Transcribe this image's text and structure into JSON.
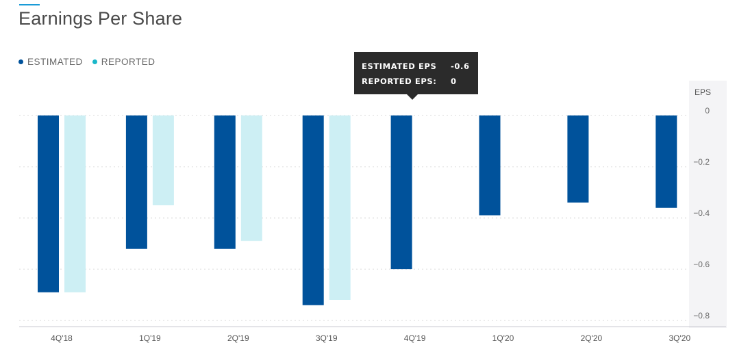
{
  "title": "Earnings Per Share",
  "legend": [
    {
      "label": "ESTIMATED",
      "color": "#00529b"
    },
    {
      "label": "REPORTED",
      "color": "#1ab7c9"
    }
  ],
  "tooltip": {
    "estimated_label": "ESTIMATED EPS",
    "estimated_value": "-0.6",
    "reported_label": "REPORTED EPS:",
    "reported_value": "0"
  },
  "chart_data": {
    "type": "bar",
    "categories": [
      "4Q'18",
      "1Q'19",
      "2Q'19",
      "3Q'19",
      "4Q'19",
      "1Q'20",
      "2Q'20",
      "3Q'20"
    ],
    "series": [
      {
        "name": "ESTIMATED",
        "color": "#00529b",
        "values": [
          -0.69,
          -0.52,
          -0.52,
          -0.74,
          -0.6,
          -0.39,
          -0.34,
          -0.36
        ]
      },
      {
        "name": "REPORTED",
        "color": "#cdeff4",
        "values": [
          -0.69,
          -0.35,
          -0.49,
          -0.72,
          null,
          null,
          null,
          null
        ]
      }
    ],
    "ylabel": "EPS",
    "ylim": [
      -0.8,
      0
    ],
    "yticks": [
      0,
      -0.2,
      -0.4,
      -0.6,
      -0.8
    ],
    "ytick_labels": [
      "0",
      "−0.2",
      "−0.4",
      "−0.6",
      "−0.8"
    ],
    "grid": true
  }
}
